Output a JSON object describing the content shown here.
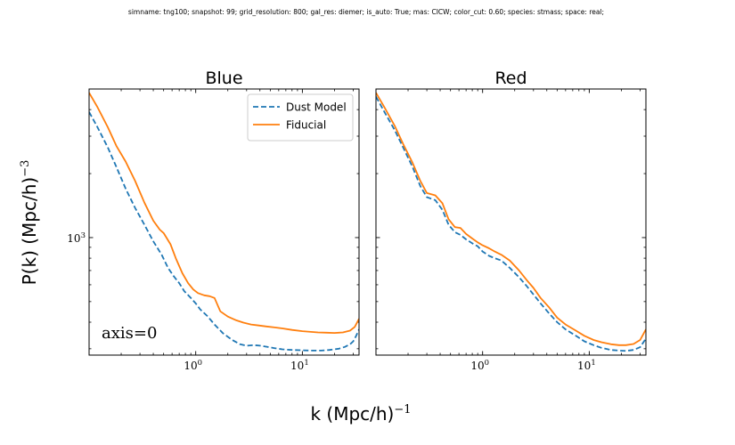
{
  "suptitle": "simname: tng100; snapshot: 99; grid_resolution: 800; gal_res: diemer; is_auto: True; mas: CICW; color_cut: 0.60; species: stmass; space: real;",
  "xlabel": "k (Mpc/h)",
  "xlabel_exp": "−1",
  "ylabel": "P(k) (Mpc/h)",
  "ylabel_exp": "−3",
  "colors": {
    "dust_model": "#1f77b4",
    "fiducial": "#ff7f0e"
  },
  "chart_data": [
    {
      "type": "line",
      "title": "Blue",
      "annotation": "axis=0",
      "xscale": "log",
      "yscale": "log",
      "xlim": [
        0.1,
        34
      ],
      "ylim": [
        280,
        5000
      ],
      "xticks": [
        1,
        10
      ],
      "xtick_labels": [
        {
          "base": "10",
          "exp": "0"
        },
        {
          "base": "10",
          "exp": "1"
        }
      ],
      "yticks": [
        1000
      ],
      "ytick_labels": [
        {
          "base": "10",
          "exp": "3"
        }
      ],
      "legend": {
        "position": "top-right",
        "entries": [
          "Dust Model",
          "Fiducial"
        ]
      },
      "series": [
        {
          "name": "Dust Model",
          "style": "dashed",
          "color": "#1f77b4",
          "x": [
            0.1,
            0.12,
            0.15,
            0.18,
            0.22,
            0.27,
            0.33,
            0.4,
            0.48,
            0.55,
            0.62,
            0.7,
            0.78,
            0.9,
            1.0,
            1.1,
            1.3,
            1.5,
            1.8,
            2.2,
            2.6,
            3.0,
            3.5,
            4.0,
            4.7,
            5.5,
            6.5,
            8.0,
            10.0,
            12.0,
            15.0,
            18.0,
            22.0,
            25.0,
            28.0,
            30.0,
            32.0,
            34.0
          ],
          "y": [
            3900,
            3300,
            2650,
            2150,
            1700,
            1380,
            1150,
            960,
            830,
            720,
            660,
            610,
            560,
            520,
            490,
            460,
            425,
            390,
            355,
            330,
            315,
            310,
            312,
            310,
            306,
            302,
            298,
            296,
            295,
            294,
            294,
            296,
            300,
            306,
            315,
            325,
            345,
            370
          ]
        },
        {
          "name": "Fiducial",
          "style": "solid",
          "color": "#ff7f0e",
          "x": [
            0.1,
            0.12,
            0.15,
            0.18,
            0.22,
            0.27,
            0.33,
            0.4,
            0.46,
            0.5,
            0.58,
            0.65,
            0.75,
            0.85,
            0.95,
            1.05,
            1.2,
            1.35,
            1.5,
            1.7,
            2.0,
            2.4,
            2.8,
            3.3,
            3.9,
            4.6,
            5.5,
            6.5,
            8.0,
            10.0,
            12.0,
            14.0,
            17.0,
            20.0,
            24.0,
            28.0,
            31.0,
            34.0
          ],
          "y": [
            4800,
            4100,
            3300,
            2700,
            2280,
            1850,
            1460,
            1200,
            1090,
            1050,
            930,
            800,
            680,
            610,
            570,
            548,
            535,
            530,
            520,
            450,
            425,
            408,
            398,
            390,
            386,
            382,
            378,
            374,
            368,
            363,
            360,
            358,
            357,
            356,
            358,
            365,
            380,
            415
          ]
        }
      ]
    },
    {
      "type": "line",
      "title": "Red",
      "xscale": "log",
      "yscale": "log",
      "xlim": [
        0.1,
        34
      ],
      "ylim": [
        280,
        5000
      ],
      "xticks": [
        1,
        10
      ],
      "xtick_labels": [
        {
          "base": "10",
          "exp": "0"
        },
        {
          "base": "10",
          "exp": "1"
        }
      ],
      "yticks": [
        1000
      ],
      "series": [
        {
          "name": "Dust Model",
          "style": "dashed",
          "color": "#1f77b4",
          "x": [
            0.1,
            0.12,
            0.15,
            0.18,
            0.22,
            0.26,
            0.3,
            0.36,
            0.42,
            0.48,
            0.55,
            0.62,
            0.7,
            0.8,
            0.9,
            1.0,
            1.15,
            1.3,
            1.5,
            1.8,
            2.2,
            2.6,
            3.0,
            3.5,
            4.2,
            5.0,
            6.0,
            7.5,
            9.0,
            11.0,
            13.0,
            16.0,
            19.0,
            22.0,
            26.0,
            30.0,
            34.0
          ],
          "y": [
            4600,
            3900,
            3200,
            2650,
            2150,
            1750,
            1550,
            1500,
            1350,
            1150,
            1060,
            1030,
            980,
            940,
            910,
            860,
            820,
            800,
            780,
            720,
            650,
            590,
            540,
            490,
            440,
            400,
            370,
            345,
            325,
            312,
            303,
            296,
            294,
            293,
            296,
            305,
            335
          ]
        },
        {
          "name": "Fiducial",
          "style": "solid",
          "color": "#ff7f0e",
          "x": [
            0.1,
            0.12,
            0.15,
            0.18,
            0.22,
            0.26,
            0.3,
            0.36,
            0.42,
            0.48,
            0.55,
            0.62,
            0.7,
            0.8,
            0.9,
            1.0,
            1.15,
            1.3,
            1.5,
            1.8,
            2.2,
            2.6,
            3.0,
            3.5,
            4.2,
            5.0,
            6.0,
            7.5,
            9.0,
            11.0,
            13.0,
            16.0,
            19.0,
            22.0,
            26.0,
            30.0,
            34.0
          ],
          "y": [
            4800,
            4100,
            3350,
            2750,
            2250,
            1850,
            1620,
            1580,
            1450,
            1220,
            1120,
            1110,
            1040,
            990,
            950,
            920,
            890,
            860,
            830,
            780,
            700,
            630,
            580,
            520,
            470,
            420,
            390,
            365,
            345,
            330,
            322,
            315,
            312,
            312,
            316,
            330,
            370
          ]
        }
      ]
    }
  ]
}
